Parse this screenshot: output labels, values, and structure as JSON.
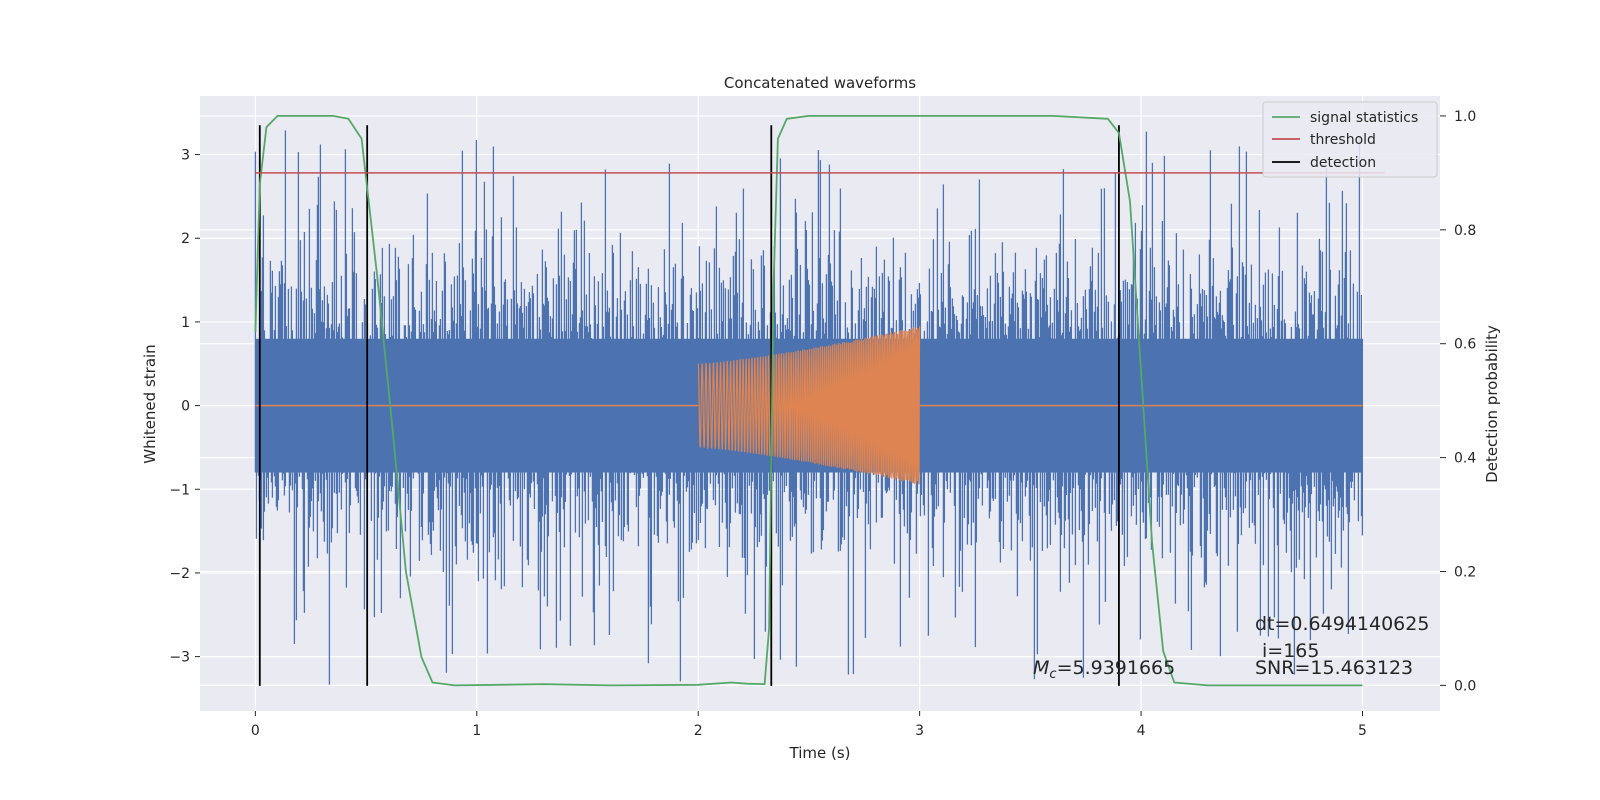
{
  "chart_data": {
    "type": "line",
    "title": "Concatenated waveforms",
    "xlabel": "Time (s)",
    "ylabel": "Whitened strain",
    "y2label": "Detection probability",
    "xlim": [
      -0.25,
      5.35
    ],
    "ylim": [
      -3.65,
      3.7
    ],
    "y2lim": [
      -0.045,
      1.035
    ],
    "x_ticks": [
      0,
      1,
      2,
      3,
      4,
      5
    ],
    "y_ticks": [
      -3,
      -2,
      -1,
      0,
      1,
      2,
      3
    ],
    "y_tick_labels": [
      "−3",
      "−2",
      "−1",
      "0",
      "1",
      "2",
      "3"
    ],
    "y2_ticks": [
      0.0,
      0.2,
      0.4,
      0.6,
      0.8,
      1.0
    ],
    "y2_tick_labels": [
      "0.0",
      "0.2",
      "0.4",
      "0.6",
      "0.8",
      "1.0"
    ],
    "grid": true,
    "legend_position": "top-right",
    "colors": {
      "background": "#eaeaf2",
      "grid": "#ffffff",
      "noise": "#4c72b0",
      "waveform": "#dd8452",
      "signal_statistics": "#55a868",
      "threshold": "#c44e52",
      "detection": "#000000"
    },
    "series": [
      {
        "name": "",
        "role": "whitened strain (noise + signal)",
        "axis": "left",
        "t_range": [
          0,
          5
        ],
        "envelope_abs_max": 3.35,
        "typical_band": [
          -0.8,
          0.8
        ]
      },
      {
        "name": "",
        "role": "injected chirp waveform",
        "axis": "left",
        "t_range": [
          0,
          5
        ],
        "chirp_start": 2.0,
        "chirp_end": 3.0,
        "amplitude_start": 0.5,
        "amplitude_end": 0.95
      },
      {
        "name": "signal statistics",
        "axis": "right",
        "x": [
          0.0,
          0.02,
          0.05,
          0.1,
          0.2,
          0.35,
          0.42,
          0.48,
          0.55,
          0.62,
          0.68,
          0.75,
          0.8,
          0.9,
          1.3,
          1.6,
          2.0,
          2.15,
          2.22,
          2.3,
          2.32,
          2.34,
          2.36,
          2.4,
          2.5,
          3.0,
          3.6,
          3.85,
          3.9,
          3.95,
          4.0,
          4.05,
          4.1,
          4.15,
          4.3,
          5.0
        ],
        "y": [
          0.62,
          0.88,
          0.98,
          1.0,
          1.0,
          1.0,
          0.995,
          0.96,
          0.72,
          0.45,
          0.2,
          0.05,
          0.005,
          0.0,
          0.002,
          0.0,
          0.001,
          0.005,
          0.003,
          0.002,
          0.1,
          0.7,
          0.96,
          0.995,
          1.0,
          1.0,
          1.0,
          0.995,
          0.97,
          0.85,
          0.55,
          0.25,
          0.06,
          0.005,
          0.0,
          0.0
        ]
      },
      {
        "name": "threshold",
        "axis": "right",
        "x": [
          0.0,
          5.1
        ],
        "y": [
          0.9,
          0.9
        ]
      },
      {
        "name": "detection",
        "axis": "left",
        "x": [
          0.02,
          0.505,
          2.33,
          3.9
        ],
        "y_range": [
          -3.35,
          3.35
        ]
      }
    ],
    "annotations": {
      "mc_symbol": "M",
      "mc_sub": "c",
      "mc_value": "=5.9391665",
      "dt": "dt=0.6494140625",
      "i": "i=165",
      "snr": "SNR=15.463123"
    }
  }
}
